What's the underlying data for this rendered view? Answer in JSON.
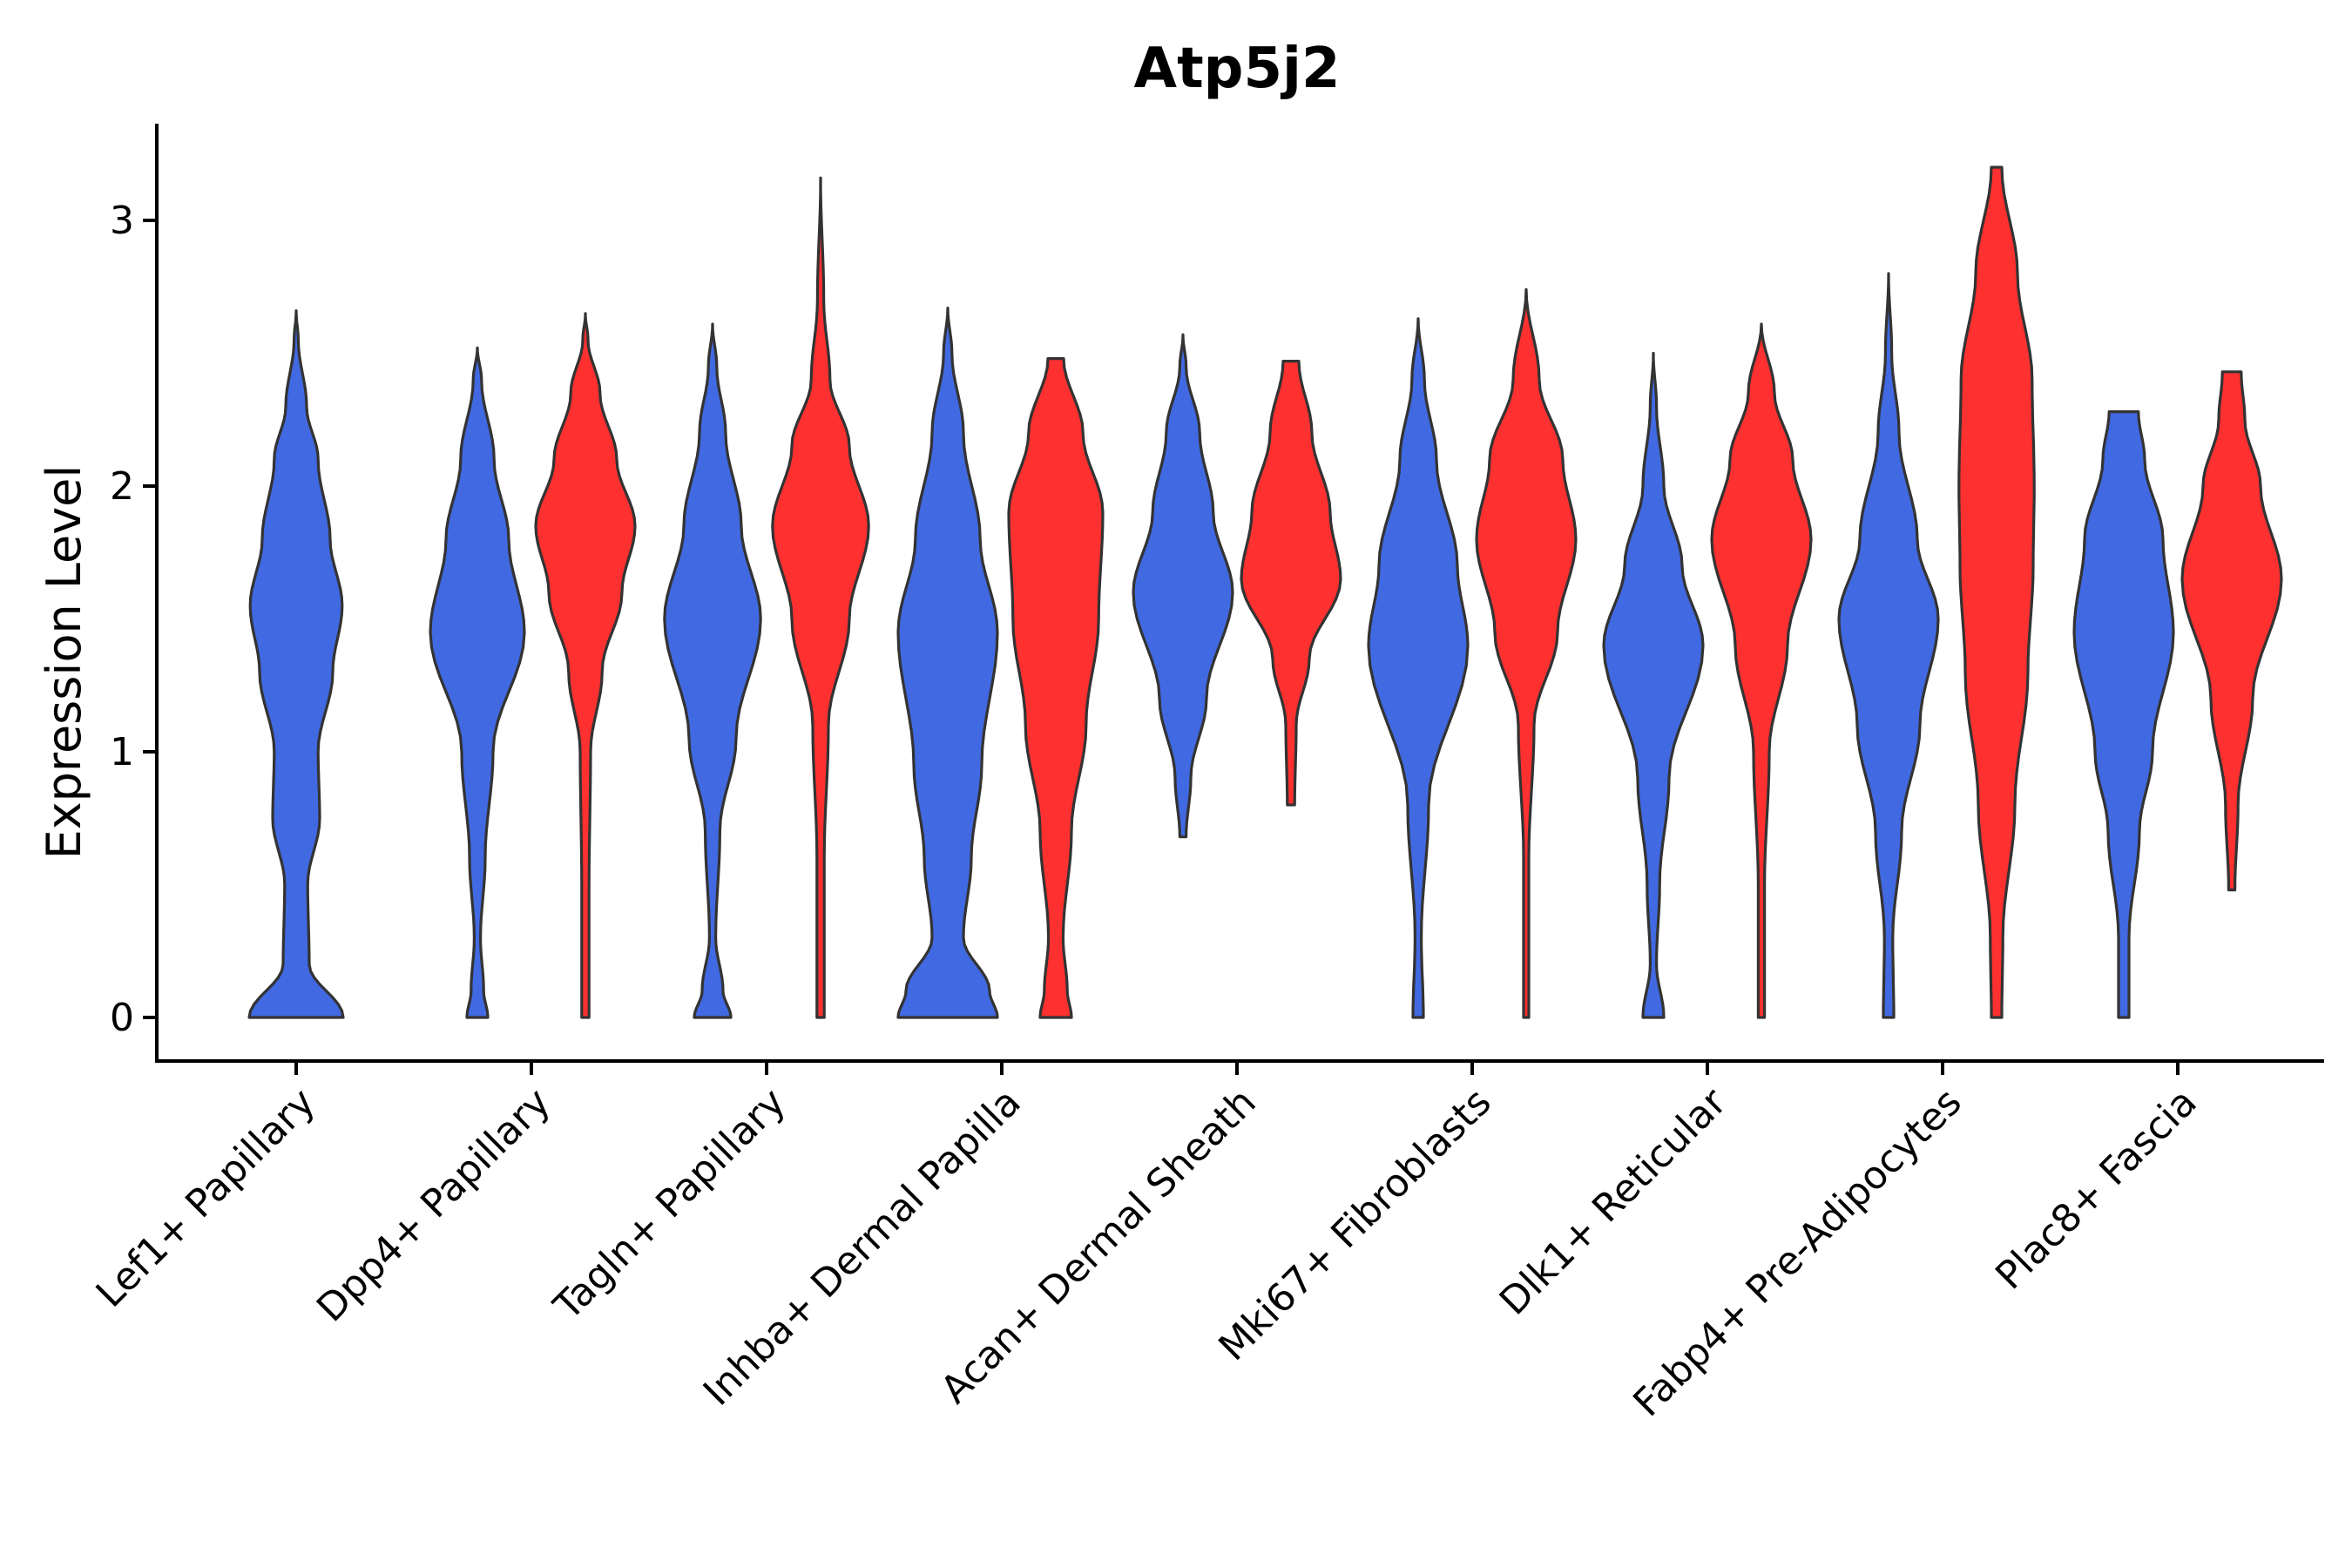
{
  "chart_data": {
    "type": "violin",
    "title": "Atp5j2",
    "xlabel": "",
    "ylabel": "Expression Level",
    "ylim": [
      -0.16,
      3.36
    ],
    "yticks": [
      0,
      1,
      2,
      3
    ],
    "ytick_labels": [
      "0",
      "1",
      "2",
      "3"
    ],
    "categories": [
      "Lef1+ Papillary",
      "Dpp4+ Papillary",
      "Tagln+ Papillary",
      "Inhba+ Dermal Papilla",
      "Acan+ Dermal Sheath",
      "Mki67+ Fibroblasts",
      "Dlk1+ Reticular",
      "Fabp4+ Pre-Adipocytes",
      "Plac8+ Fascia"
    ],
    "series_colors": {
      "group1": "#4169E1",
      "group2": "#FF3030"
    },
    "violins": [
      {
        "category": "Lef1+ Papillary",
        "group": "group1",
        "color": "#4169E1",
        "profile": [
          [
            0,
            0.9
          ],
          [
            0.2,
            0.25
          ],
          [
            0.5,
            0.22
          ],
          [
            0.75,
            0.45
          ],
          [
            1.0,
            0.42
          ],
          [
            1.3,
            0.7
          ],
          [
            1.55,
            0.88
          ],
          [
            1.8,
            0.65
          ],
          [
            2.1,
            0.42
          ],
          [
            2.3,
            0.2
          ],
          [
            2.55,
            0.04
          ],
          [
            2.66,
            0
          ]
        ]
      },
      {
        "category": "Dpp4+ Papillary",
        "group": "group1",
        "color": "#4169E1",
        "profile": [
          [
            0,
            0.2
          ],
          [
            0.1,
            0.12
          ],
          [
            0.3,
            0.06
          ],
          [
            0.6,
            0.15
          ],
          [
            1.0,
            0.3
          ],
          [
            1.45,
            0.9
          ],
          [
            1.8,
            0.6
          ],
          [
            2.1,
            0.32
          ],
          [
            2.4,
            0.08
          ],
          [
            2.52,
            0
          ]
        ]
      },
      {
        "category": "Dpp4+ Papillary",
        "group": "group2",
        "color": "#FF3030",
        "profile": [
          [
            0,
            0.07
          ],
          [
            0.5,
            0.07
          ],
          [
            1.0,
            0.1
          ],
          [
            1.3,
            0.32
          ],
          [
            1.6,
            0.7
          ],
          [
            1.85,
            0.95
          ],
          [
            2.1,
            0.6
          ],
          [
            2.35,
            0.28
          ],
          [
            2.55,
            0.05
          ],
          [
            2.65,
            0
          ]
        ]
      },
      {
        "category": "Tagln+ Papillary",
        "group": "group1",
        "color": "#4169E1",
        "profile": [
          [
            0,
            0.35
          ],
          [
            0.1,
            0.2
          ],
          [
            0.3,
            0.06
          ],
          [
            0.7,
            0.14
          ],
          [
            1.05,
            0.45
          ],
          [
            1.5,
            0.92
          ],
          [
            1.85,
            0.55
          ],
          [
            2.2,
            0.25
          ],
          [
            2.45,
            0.08
          ],
          [
            2.61,
            0
          ]
        ]
      },
      {
        "category": "Tagln+ Papillary",
        "group": "group2",
        "color": "#FF3030",
        "profile": [
          [
            0,
            0.07
          ],
          [
            0.6,
            0.07
          ],
          [
            1.1,
            0.15
          ],
          [
            1.5,
            0.55
          ],
          [
            1.85,
            0.92
          ],
          [
            2.15,
            0.55
          ],
          [
            2.4,
            0.18
          ],
          [
            2.7,
            0.06
          ],
          [
            3.16,
            0
          ]
        ]
      },
      {
        "category": "Inhba+ Dermal Papilla",
        "group": "group1",
        "color": "#4169E1",
        "profile": [
          [
            0,
            0.95
          ],
          [
            0.1,
            0.8
          ],
          [
            0.3,
            0.3
          ],
          [
            0.6,
            0.45
          ],
          [
            0.95,
            0.65
          ],
          [
            1.45,
            0.95
          ],
          [
            1.8,
            0.62
          ],
          [
            2.2,
            0.3
          ],
          [
            2.5,
            0.08
          ],
          [
            2.67,
            0
          ]
        ]
      },
      {
        "category": "Inhba+ Dermal Papilla",
        "group": "group2",
        "color": "#FF3030",
        "profile": [
          [
            0,
            0.3
          ],
          [
            0.1,
            0.22
          ],
          [
            0.3,
            0.14
          ],
          [
            0.7,
            0.3
          ],
          [
            1.1,
            0.58
          ],
          [
            1.5,
            0.82
          ],
          [
            1.9,
            0.9
          ],
          [
            2.2,
            0.52
          ],
          [
            2.48,
            0.15
          ]
        ]
      },
      {
        "category": "Acan+ Dermal Sheath",
        "group": "group1",
        "color": "#4169E1",
        "profile": [
          [
            0.68,
            0.06
          ],
          [
            0.9,
            0.15
          ],
          [
            1.2,
            0.45
          ],
          [
            1.6,
            0.95
          ],
          [
            1.9,
            0.58
          ],
          [
            2.2,
            0.32
          ],
          [
            2.45,
            0.06
          ],
          [
            2.57,
            0
          ]
        ]
      },
      {
        "category": "Acan+ Dermal Sheath",
        "group": "group2",
        "color": "#FF3030",
        "profile": [
          [
            0.8,
            0.07
          ],
          [
            1.1,
            0.1
          ],
          [
            1.35,
            0.35
          ],
          [
            1.65,
            0.95
          ],
          [
            1.9,
            0.75
          ],
          [
            2.2,
            0.4
          ],
          [
            2.47,
            0.15
          ]
        ]
      },
      {
        "category": "Mki67+ Fibroblasts",
        "group": "group1",
        "color": "#4169E1",
        "profile": [
          [
            0,
            0.1
          ],
          [
            0.3,
            0.06
          ],
          [
            0.8,
            0.2
          ],
          [
            1.4,
            0.95
          ],
          [
            1.7,
            0.75
          ],
          [
            2.1,
            0.35
          ],
          [
            2.4,
            0.12
          ],
          [
            2.63,
            0
          ]
        ]
      },
      {
        "category": "Mki67+ Fibroblasts",
        "group": "group2",
        "color": "#FF3030",
        "profile": [
          [
            0,
            0.05
          ],
          [
            0.6,
            0.05
          ],
          [
            1.1,
            0.15
          ],
          [
            1.45,
            0.6
          ],
          [
            1.8,
            0.95
          ],
          [
            2.1,
            0.7
          ],
          [
            2.4,
            0.25
          ],
          [
            2.74,
            0
          ]
        ]
      },
      {
        "category": "Dlk1+ Reticular",
        "group": "group1",
        "color": "#4169E1",
        "profile": [
          [
            0,
            0.2
          ],
          [
            0.2,
            0.06
          ],
          [
            0.5,
            0.12
          ],
          [
            0.9,
            0.3
          ],
          [
            1.4,
            0.95
          ],
          [
            1.7,
            0.55
          ],
          [
            2.0,
            0.2
          ],
          [
            2.3,
            0.06
          ],
          [
            2.5,
            0
          ]
        ]
      },
      {
        "category": "Dlk1+ Reticular",
        "group": "group2",
        "color": "#FF3030",
        "profile": [
          [
            0,
            0.06
          ],
          [
            0.5,
            0.06
          ],
          [
            1.0,
            0.15
          ],
          [
            1.4,
            0.5
          ],
          [
            1.8,
            0.95
          ],
          [
            2.1,
            0.6
          ],
          [
            2.35,
            0.25
          ],
          [
            2.61,
            0
          ]
        ]
      },
      {
        "category": "Fabp4+ Pre-Adipocytes",
        "group": "group1",
        "color": "#4169E1",
        "profile": [
          [
            0,
            0.1
          ],
          [
            0.3,
            0.08
          ],
          [
            0.7,
            0.25
          ],
          [
            1.1,
            0.6
          ],
          [
            1.5,
            0.95
          ],
          [
            1.8,
            0.55
          ],
          [
            2.2,
            0.2
          ],
          [
            2.5,
            0.06
          ],
          [
            2.8,
            0
          ]
        ]
      },
      {
        "category": "Fabp4+ Pre-Adipocytes",
        "group": "group2",
        "color": "#FF3030",
        "profile": [
          [
            0,
            0.1
          ],
          [
            0.3,
            0.12
          ],
          [
            0.8,
            0.35
          ],
          [
            1.3,
            0.6
          ],
          [
            1.7,
            0.7
          ],
          [
            2.0,
            0.72
          ],
          [
            2.4,
            0.68
          ],
          [
            2.8,
            0.4
          ],
          [
            3.2,
            0.1
          ]
        ]
      },
      {
        "category": "Plac8+ Fascia",
        "group": "group1",
        "color": "#4169E1",
        "profile": [
          [
            0,
            0.1
          ],
          [
            0.3,
            0.1
          ],
          [
            0.7,
            0.3
          ],
          [
            1.0,
            0.55
          ],
          [
            1.45,
            0.95
          ],
          [
            1.8,
            0.75
          ],
          [
            2.1,
            0.4
          ],
          [
            2.28,
            0.28
          ]
        ]
      },
      {
        "category": "Plac8+ Fascia",
        "group": "group2",
        "color": "#FF3030",
        "profile": [
          [
            0.48,
            0.06
          ],
          [
            0.8,
            0.12
          ],
          [
            1.2,
            0.4
          ],
          [
            1.65,
            0.95
          ],
          [
            2.0,
            0.55
          ],
          [
            2.25,
            0.25
          ],
          [
            2.43,
            0.18
          ]
        ]
      }
    ]
  }
}
